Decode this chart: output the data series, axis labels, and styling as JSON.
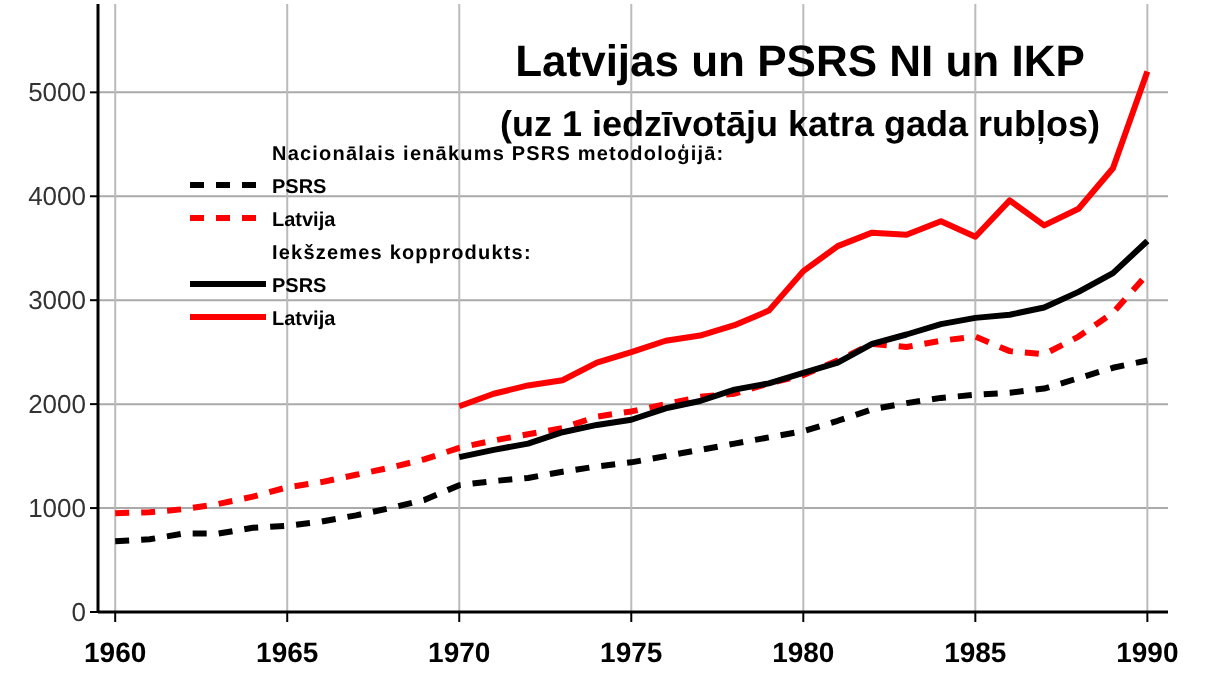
{
  "chart_data": {
    "type": "line",
    "title": "Latvijas un PSRS  NI un IKP",
    "subtitle": "(uz 1 iedzīvotāju katra gada rubļos)",
    "annotations": [
      "Nacionālais ienākums PSRS metodoloģijā:",
      "Iekšzemes kopprodukts:"
    ],
    "x": [
      1960,
      1961,
      1962,
      1963,
      1964,
      1965,
      1966,
      1967,
      1968,
      1969,
      1970,
      1971,
      1972,
      1973,
      1974,
      1975,
      1976,
      1977,
      1978,
      1979,
      1980,
      1981,
      1982,
      1983,
      1984,
      1985,
      1986,
      1987,
      1988,
      1989,
      1990
    ],
    "xlim": [
      1959.5,
      1990.6
    ],
    "xticks": [
      1960,
      1965,
      1970,
      1975,
      1980,
      1985,
      1990
    ],
    "ylim": [
      0,
      5850
    ],
    "yticks": [
      0,
      1000,
      2000,
      3000,
      4000,
      5000
    ],
    "grid": true,
    "legend": "top left",
    "series": [
      {
        "name": "PSRS",
        "color": "#000000",
        "line_style": "dashed",
        "values": [
          680,
          700,
          755,
          755,
          810,
          830,
          870,
          930,
          1000,
          1080,
          1220,
          1260,
          1290,
          1350,
          1400,
          1440,
          1500,
          1560,
          1620,
          1680,
          1740,
          1840,
          1950,
          2010,
          2060,
          2090,
          2110,
          2150,
          2250,
          2350,
          2420
        ]
      },
      {
        "name": "Latvija",
        "color": "#ff0000",
        "line_style": "dashed",
        "values": [
          950,
          960,
          990,
          1040,
          1110,
          1200,
          1250,
          1320,
          1390,
          1470,
          1580,
          1650,
          1710,
          1770,
          1880,
          1930,
          2000,
          2070,
          2100,
          2200,
          2280,
          2420,
          2580,
          2550,
          2610,
          2650,
          2510,
          2480,
          2650,
          2880,
          3250
        ]
      },
      {
        "name": "PSRS",
        "color": "#000000",
        "line_style": "solid",
        "x": [
          1970,
          1971,
          1972,
          1973,
          1974,
          1975,
          1976,
          1977,
          1978,
          1979,
          1980,
          1981,
          1982,
          1983,
          1984,
          1985,
          1986,
          1987,
          1988,
          1989,
          1990
        ],
        "values": [
          1490,
          1560,
          1620,
          1730,
          1800,
          1850,
          1960,
          2030,
          2140,
          2200,
          2300,
          2400,
          2580,
          2670,
          2770,
          2830,
          2860,
          2930,
          3080,
          3260,
          3570
        ]
      },
      {
        "name": "Latvija",
        "color": "#ff0000",
        "line_style": "solid",
        "x": [
          1970,
          1971,
          1972,
          1973,
          1974,
          1975,
          1976,
          1977,
          1978,
          1979,
          1980,
          1981,
          1982,
          1983,
          1984,
          1985,
          1986,
          1987,
          1988,
          1989,
          1990
        ],
        "values": [
          1980,
          2100,
          2180,
          2230,
          2400,
          2500,
          2610,
          2660,
          2760,
          2900,
          3280,
          3520,
          3650,
          3630,
          3760,
          3610,
          3960,
          3720,
          3880,
          4270,
          5200
        ]
      }
    ]
  }
}
